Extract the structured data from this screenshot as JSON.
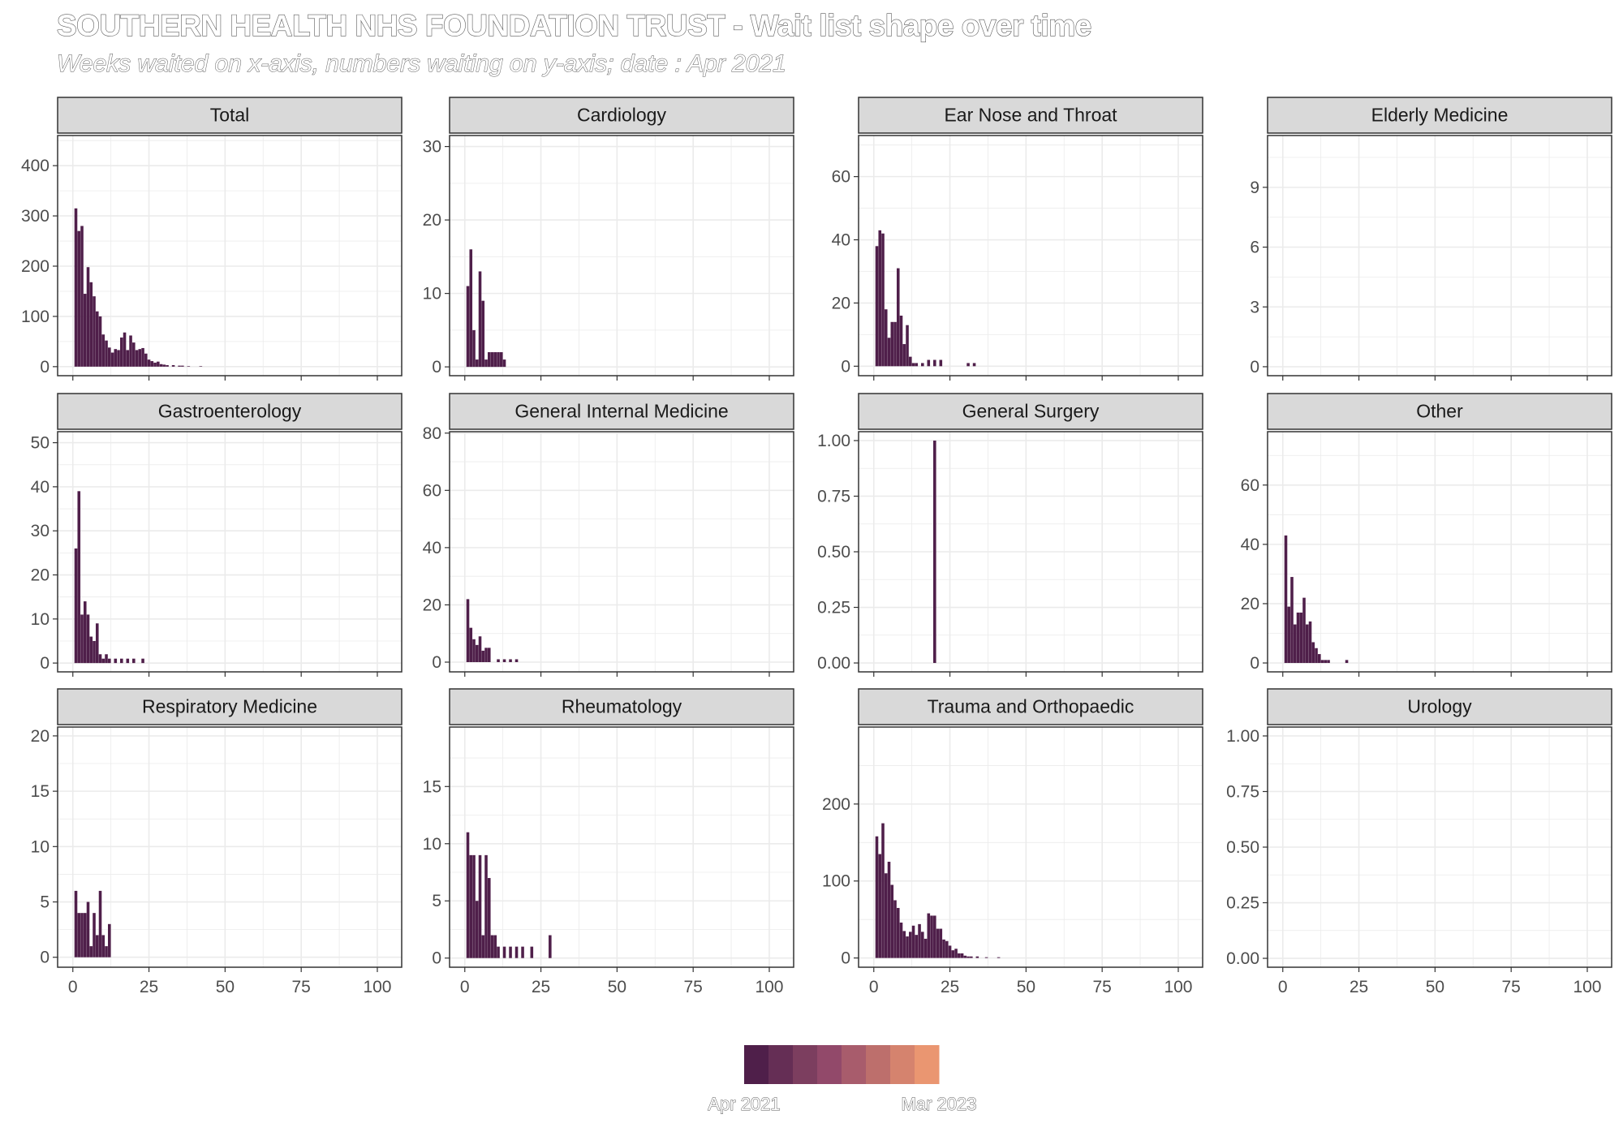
{
  "title": "SOUTHERN HEALTH NHS FOUNDATION TRUST - Wait list shape over time",
  "subtitle": "Weeks waited on x-axis, numbers waiting on y-axis; date : Apr 2021",
  "colors": {
    "bar": "#4f1f4a",
    "panel_border": "#333333",
    "strip_fill": "#d9d9d9",
    "grid": "#ebebeb",
    "axis_text": "#4d4d4d"
  },
  "legend": {
    "start_label": "Apr 2021",
    "end_label": "Mar 2023",
    "colors": [
      "#4f1f4a",
      "#652e55",
      "#7c3e5f",
      "#92496a",
      "#a85c6c",
      "#bd6f6c",
      "#d5836e",
      "#ea9671"
    ]
  },
  "chart_data": {
    "type": "bar",
    "x_ticks": [
      0,
      25,
      50,
      75,
      100
    ],
    "xlim": [
      -5,
      108
    ],
    "panels": [
      {
        "name": "Total",
        "ylim": [
          -18,
          460
        ],
        "y_ticks": [
          0,
          100,
          200,
          300,
          400
        ],
        "bars": [
          [
            1,
            315
          ],
          [
            2,
            270
          ],
          [
            3,
            280
          ],
          [
            4,
            145
          ],
          [
            5,
            198
          ],
          [
            6,
            168
          ],
          [
            7,
            140
          ],
          [
            8,
            110
          ],
          [
            9,
            100
          ],
          [
            10,
            64
          ],
          [
            11,
            52
          ],
          [
            12,
            38
          ],
          [
            13,
            28
          ],
          [
            14,
            35
          ],
          [
            15,
            33
          ],
          [
            16,
            58
          ],
          [
            17,
            68
          ],
          [
            18,
            33
          ],
          [
            19,
            62
          ],
          [
            20,
            48
          ],
          [
            21,
            33
          ],
          [
            22,
            35
          ],
          [
            23,
            37
          ],
          [
            24,
            26
          ],
          [
            25,
            14
          ],
          [
            26,
            11
          ],
          [
            27,
            8
          ],
          [
            28,
            10
          ],
          [
            29,
            5
          ],
          [
            30,
            4
          ],
          [
            31,
            3
          ],
          [
            33,
            3
          ],
          [
            35,
            2
          ],
          [
            36,
            2
          ],
          [
            38,
            1
          ],
          [
            42,
            1
          ]
        ]
      },
      {
        "name": "Cardiology",
        "ylim": [
          -1.2,
          31.5
        ],
        "y_ticks": [
          0,
          10,
          20,
          30
        ],
        "bars": [
          [
            1,
            11
          ],
          [
            2,
            16
          ],
          [
            3,
            5
          ],
          [
            4,
            1
          ],
          [
            5,
            13
          ],
          [
            6,
            9
          ],
          [
            7,
            1
          ],
          [
            8,
            2
          ],
          [
            9,
            2
          ],
          [
            10,
            2
          ],
          [
            11,
            2
          ],
          [
            12,
            2
          ],
          [
            13,
            1
          ]
        ]
      },
      {
        "name": "Ear Nose and Throat",
        "ylim": [
          -3,
          73
        ],
        "y_ticks": [
          0,
          20,
          40,
          60
        ],
        "bars": [
          [
            1,
            38
          ],
          [
            2,
            43
          ],
          [
            3,
            42
          ],
          [
            4,
            18
          ],
          [
            5,
            9
          ],
          [
            6,
            14
          ],
          [
            7,
            14
          ],
          [
            8,
            31
          ],
          [
            9,
            16
          ],
          [
            10,
            7
          ],
          [
            11,
            13
          ],
          [
            12,
            3
          ],
          [
            13,
            1
          ],
          [
            14,
            1
          ],
          [
            16,
            1
          ],
          [
            18,
            2
          ],
          [
            20,
            2
          ],
          [
            22,
            2
          ],
          [
            31,
            1
          ],
          [
            33,
            1
          ]
        ]
      },
      {
        "name": "Elderly Medicine",
        "ylim": [
          -0.45,
          11.6
        ],
        "y_ticks": [
          0,
          3,
          6,
          9
        ],
        "bars": []
      },
      {
        "name": "Gastroenterology",
        "ylim": [
          -2,
          52.5
        ],
        "y_ticks": [
          0,
          10,
          20,
          30,
          40,
          50
        ],
        "bars": [
          [
            1,
            26
          ],
          [
            2,
            39
          ],
          [
            3,
            11
          ],
          [
            4,
            14
          ],
          [
            5,
            11
          ],
          [
            6,
            6
          ],
          [
            7,
            5
          ],
          [
            8,
            9
          ],
          [
            9,
            2
          ],
          [
            10,
            1
          ],
          [
            11,
            2
          ],
          [
            12,
            1
          ],
          [
            14,
            1
          ],
          [
            16,
            1
          ],
          [
            18,
            1
          ],
          [
            20,
            1
          ],
          [
            23,
            1
          ]
        ]
      },
      {
        "name": "General Internal Medicine",
        "ylim": [
          -3.4,
          80.5
        ],
        "y_ticks": [
          0,
          20,
          40,
          60,
          80
        ],
        "bars": [
          [
            1,
            22
          ],
          [
            2,
            12
          ],
          [
            3,
            8
          ],
          [
            4,
            6
          ],
          [
            5,
            9
          ],
          [
            6,
            4
          ],
          [
            7,
            5
          ],
          [
            8,
            5
          ],
          [
            11,
            1
          ],
          [
            13,
            1
          ],
          [
            15,
            1
          ],
          [
            17,
            1
          ]
        ]
      },
      {
        "name": "General Surgery",
        "ylim": [
          -0.04,
          1.04
        ],
        "y_ticks": [
          0.0,
          0.25,
          0.5,
          0.75,
          1.0
        ],
        "y_tick_labels": [
          "0.00",
          "0.25",
          "0.50",
          "0.75",
          "1.00"
        ],
        "bars": [
          [
            20,
            1
          ]
        ]
      },
      {
        "name": "Other",
        "ylim": [
          -3,
          78
        ],
        "y_ticks": [
          0,
          20,
          40,
          60
        ],
        "bars": [
          [
            1,
            43
          ],
          [
            2,
            19
          ],
          [
            3,
            29
          ],
          [
            4,
            13
          ],
          [
            5,
            17
          ],
          [
            6,
            17
          ],
          [
            7,
            22
          ],
          [
            8,
            13
          ],
          [
            9,
            14
          ],
          [
            10,
            7
          ],
          [
            11,
            5
          ],
          [
            12,
            3
          ],
          [
            13,
            1
          ],
          [
            14,
            1
          ],
          [
            15,
            1
          ],
          [
            21,
            1
          ]
        ]
      },
      {
        "name": "Respiratory Medicine",
        "ylim": [
          -0.9,
          20.8
        ],
        "y_ticks": [
          0,
          5,
          10,
          15,
          20
        ],
        "bars": [
          [
            1,
            6
          ],
          [
            2,
            4
          ],
          [
            3,
            4
          ],
          [
            4,
            4
          ],
          [
            5,
            5
          ],
          [
            6,
            1
          ],
          [
            7,
            4
          ],
          [
            8,
            2
          ],
          [
            9,
            6
          ],
          [
            10,
            2
          ],
          [
            11,
            1
          ],
          [
            12,
            3
          ]
        ]
      },
      {
        "name": "Rheumatology",
        "ylim": [
          -0.8,
          20.2
        ],
        "y_ticks": [
          0,
          5,
          10,
          15
        ],
        "bars": [
          [
            1,
            11
          ],
          [
            2,
            9
          ],
          [
            3,
            9
          ],
          [
            4,
            5
          ],
          [
            5,
            9
          ],
          [
            6,
            2
          ],
          [
            7,
            9
          ],
          [
            8,
            7
          ],
          [
            9,
            2
          ],
          [
            10,
            2
          ],
          [
            11,
            1
          ],
          [
            13,
            1
          ],
          [
            15,
            1
          ],
          [
            17,
            1
          ],
          [
            19,
            1
          ],
          [
            22,
            1
          ],
          [
            28,
            2
          ]
        ]
      },
      {
        "name": "Trauma and Orthopaedic",
        "ylim": [
          -12,
          300
        ],
        "y_ticks": [
          0,
          100,
          200
        ],
        "bars": [
          [
            1,
            158
          ],
          [
            2,
            135
          ],
          [
            3,
            175
          ],
          [
            4,
            110
          ],
          [
            5,
            125
          ],
          [
            6,
            95
          ],
          [
            7,
            75
          ],
          [
            8,
            65
          ],
          [
            9,
            46
          ],
          [
            10,
            35
          ],
          [
            11,
            28
          ],
          [
            12,
            34
          ],
          [
            13,
            42
          ],
          [
            14,
            30
          ],
          [
            15,
            44
          ],
          [
            16,
            34
          ],
          [
            17,
            25
          ],
          [
            18,
            58
          ],
          [
            19,
            55
          ],
          [
            20,
            55
          ],
          [
            21,
            38
          ],
          [
            22,
            38
          ],
          [
            23,
            24
          ],
          [
            24,
            22
          ],
          [
            25,
            16
          ],
          [
            26,
            10
          ],
          [
            27,
            12
          ],
          [
            28,
            6
          ],
          [
            29,
            6
          ],
          [
            30,
            3
          ],
          [
            31,
            2
          ],
          [
            32,
            2
          ],
          [
            34,
            2
          ],
          [
            37,
            1
          ],
          [
            41,
            1
          ]
        ]
      },
      {
        "name": "Urology",
        "ylim": [
          -0.04,
          1.04
        ],
        "y_ticks": [
          0.0,
          0.25,
          0.5,
          0.75,
          1.0
        ],
        "y_tick_labels": [
          "0.00",
          "0.25",
          "0.50",
          "0.75",
          "1.00"
        ],
        "bars": []
      }
    ]
  }
}
